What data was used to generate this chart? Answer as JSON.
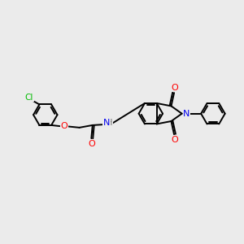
{
  "background_color": "#ebebeb",
  "bond_color": "#000000",
  "atom_colors": {
    "Cl": "#00bb00",
    "O": "#ff0000",
    "N": "#0000ee",
    "C": "#000000"
  },
  "figsize": [
    3.0,
    3.0
  ],
  "dpi": 100,
  "xlim": [
    0,
    10
  ],
  "ylim": [
    0,
    10
  ]
}
